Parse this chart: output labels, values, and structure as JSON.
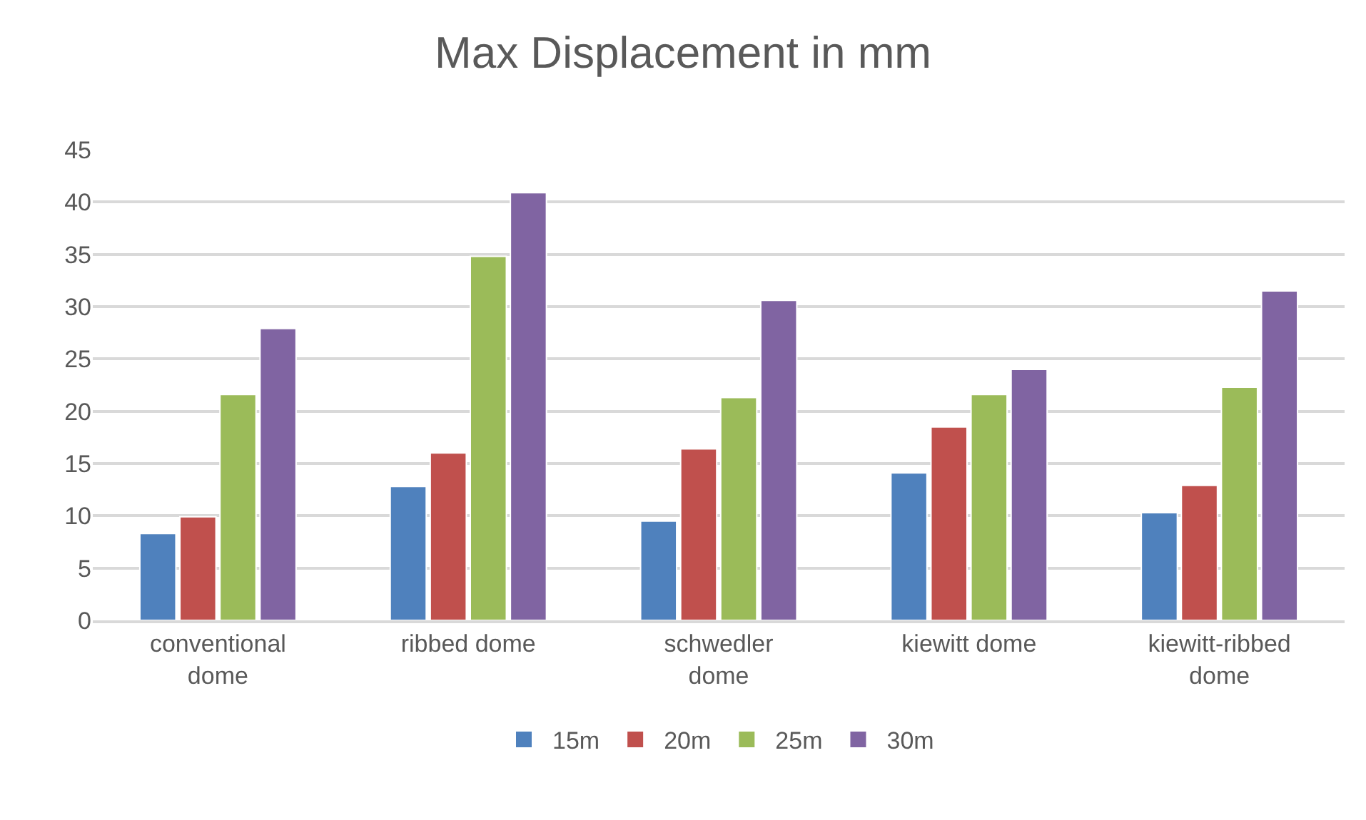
{
  "chart_data": {
    "type": "bar",
    "title": "Max Displacement in mm",
    "categories": [
      "conventional dome",
      "ribbed dome",
      "schwedler dome",
      "kiewitt dome",
      "kiewitt-ribbed dome"
    ],
    "series": [
      {
        "name": "15m",
        "color": "#4f81bd",
        "values": [
          8.3,
          12.8,
          9.5,
          14.1,
          10.3
        ]
      },
      {
        "name": "20m",
        "color": "#c0504d",
        "values": [
          9.9,
          16.0,
          16.4,
          18.5,
          12.9
        ]
      },
      {
        "name": "25m",
        "color": "#9bbb59",
        "values": [
          21.6,
          34.8,
          21.3,
          21.6,
          22.3
        ]
      },
      {
        "name": "30m",
        "color": "#8064a2",
        "values": [
          27.9,
          40.9,
          30.6,
          24.0,
          31.5
        ]
      }
    ],
    "ylim": [
      0,
      45
    ],
    "yticks": [
      0,
      5,
      10,
      15,
      20,
      25,
      30,
      35,
      40,
      45
    ],
    "grid": "y",
    "legend": "bottom"
  }
}
